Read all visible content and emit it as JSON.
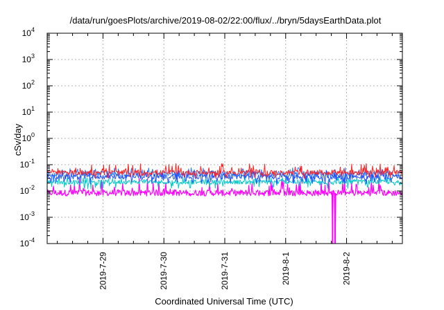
{
  "chart_data": {
    "type": "line",
    "title": "/data/run/goesPlots/archive/2019-08-02/22:00/flux/../bryn/5daysEarthData.plot",
    "xlabel": "Coordinated Universal Time (UTC)",
    "ylabel": "cSv/day",
    "y_scale": "log",
    "ylim": [
      0.0001,
      10000
    ],
    "xlim": [
      "2019-07-28 02:00",
      "2019-08-02 22:00"
    ],
    "grid": true,
    "y_ticks": [
      {
        "value": 0.0001,
        "base": "10",
        "exp": "-4"
      },
      {
        "value": 0.001,
        "base": "10",
        "exp": "-3"
      },
      {
        "value": 0.01,
        "base": "10",
        "exp": "-2"
      },
      {
        "value": 0.1,
        "base": "10",
        "exp": "-1"
      },
      {
        "value": 1,
        "base": "10",
        "exp": "0"
      },
      {
        "value": 10,
        "base": "10",
        "exp": "1"
      },
      {
        "value": 100,
        "base": "10",
        "exp": "2"
      },
      {
        "value": 1000,
        "base": "10",
        "exp": "3"
      },
      {
        "value": 10000,
        "base": "10",
        "exp": "4"
      }
    ],
    "x_ticks": [
      "2019-7-29",
      "2019-7-30",
      "2019-7-31",
      "2019-8-1",
      "2019-8-2"
    ],
    "series": [
      {
        "color": "#ff00ff",
        "typical": 0.0085,
        "low": 0.0065,
        "high": 0.03,
        "dips": [
          {
            "x": "2019-08-01 18:30",
            "value": 0.0001
          },
          {
            "x": "2019-08-01 19:30",
            "value": 0.0001
          }
        ]
      },
      {
        "color": "#00c8c8",
        "typical": 0.022,
        "low": 0.012,
        "high": 0.035
      },
      {
        "color": "#2a7fff",
        "typical": 0.045,
        "low": 0.02,
        "high": 0.08
      },
      {
        "color": "#2050ff",
        "typical": 0.035,
        "low": 0.018,
        "high": 0.065
      },
      {
        "color": "#ff2020",
        "typical": 0.05,
        "low": 0.03,
        "high": 0.11
      }
    ]
  }
}
